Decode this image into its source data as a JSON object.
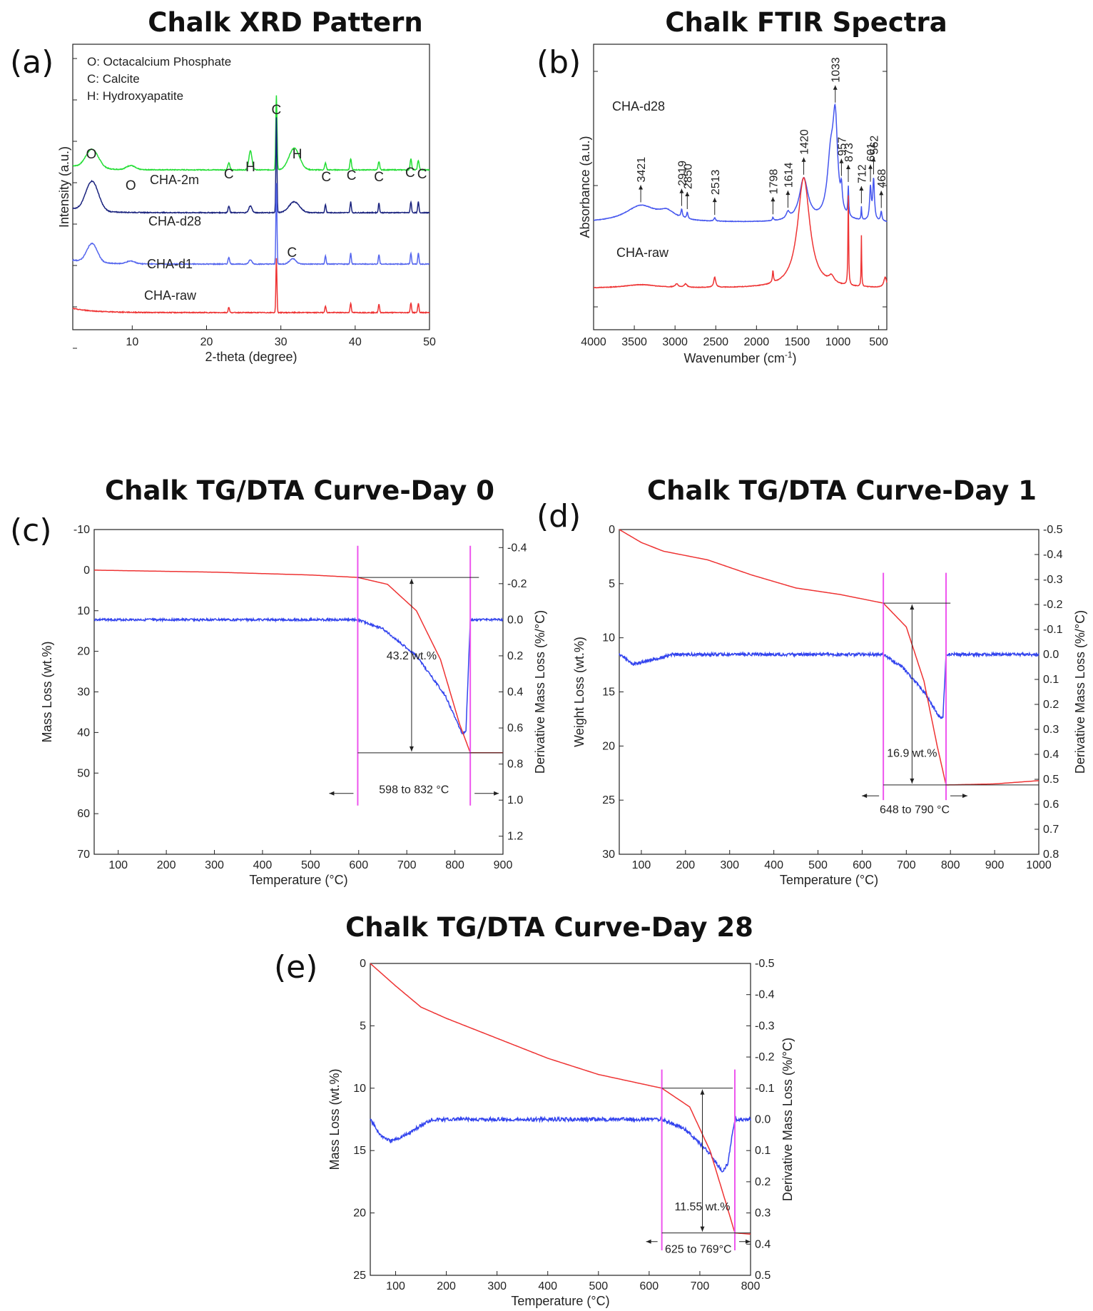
{
  "chart_data": [
    {
      "id": "a",
      "panel_label": "(a)",
      "type": "line",
      "title": "Chalk XRD Pattern",
      "xlabel": "2-theta (degree)",
      "ylabel": "Intensity (a.u.)",
      "xlim": [
        2,
        50
      ],
      "xticks": [
        10,
        20,
        30,
        40,
        50
      ],
      "legend": [
        "O: Octacalcium Phosphate",
        "C: Calcite",
        "H: Hydroxyapatite"
      ],
      "series": [
        {
          "name": "CHA-2m",
          "color": "#22dd33",
          "offset": 0.0,
          "peaks": [
            [
              4.6,
              0.14,
              1.2
            ],
            [
              9.8,
              0.03,
              0.8
            ],
            [
              23.0,
              0.05,
              0.2
            ],
            [
              25.9,
              0.14,
              0.3
            ],
            [
              29.4,
              0.55,
              0.12
            ],
            [
              31.8,
              0.16,
              1.0
            ],
            [
              36.0,
              0.05,
              0.15
            ],
            [
              39.4,
              0.08,
              0.15
            ],
            [
              43.2,
              0.06,
              0.15
            ],
            [
              47.5,
              0.08,
              0.15
            ],
            [
              48.5,
              0.07,
              0.15
            ]
          ]
        },
        {
          "name": "CHA-d28",
          "color": "#1a237e",
          "offset": 1.0,
          "peaks": [
            [
              4.6,
              0.22,
              1.2
            ],
            [
              23.0,
              0.05,
              0.15
            ],
            [
              25.9,
              0.05,
              0.3
            ],
            [
              29.4,
              0.7,
              0.1
            ],
            [
              31.8,
              0.08,
              1.0
            ],
            [
              36.0,
              0.06,
              0.12
            ],
            [
              39.4,
              0.08,
              0.12
            ],
            [
              43.2,
              0.07,
              0.12
            ],
            [
              47.5,
              0.08,
              0.12
            ],
            [
              48.5,
              0.08,
              0.12
            ]
          ]
        },
        {
          "name": "CHA-d1",
          "color": "#5566ee",
          "offset": 2.0,
          "peaks": [
            [
              4.6,
              0.14,
              1.0
            ],
            [
              9.8,
              0.02,
              0.8
            ],
            [
              23.0,
              0.05,
              0.15
            ],
            [
              25.9,
              0.03,
              0.3
            ],
            [
              29.4,
              0.6,
              0.1
            ],
            [
              31.6,
              0.04,
              0.6
            ],
            [
              36.0,
              0.06,
              0.12
            ],
            [
              39.4,
              0.08,
              0.12
            ],
            [
              43.2,
              0.07,
              0.12
            ],
            [
              47.5,
              0.08,
              0.12
            ],
            [
              48.5,
              0.08,
              0.12
            ]
          ]
        },
        {
          "name": "CHA-raw",
          "color": "#ee3333",
          "offset": 3.0,
          "peaks": [
            [
              23.0,
              0.04,
              0.12
            ],
            [
              29.4,
              0.4,
              0.1
            ],
            [
              36.0,
              0.05,
              0.12
            ],
            [
              39.4,
              0.07,
              0.12
            ],
            [
              43.2,
              0.06,
              0.12
            ],
            [
              47.5,
              0.07,
              0.12
            ],
            [
              48.5,
              0.07,
              0.12
            ]
          ]
        }
      ],
      "annotations": [
        {
          "text": "O",
          "x": 4.5,
          "row": 0
        },
        {
          "text": "O",
          "x": 9.8,
          "row": 0
        },
        {
          "text": "C",
          "x": 23.0,
          "row": 0
        },
        {
          "text": "H",
          "x": 25.9,
          "row": 0
        },
        {
          "text": "C",
          "x": 29.4,
          "row": 0
        },
        {
          "text": "H",
          "x": 32.2,
          "row": 0
        },
        {
          "text": "C",
          "x": 36.1,
          "row": 0
        },
        {
          "text": "C",
          "x": 39.5,
          "row": 0
        },
        {
          "text": "C",
          "x": 43.2,
          "row": 0
        },
        {
          "text": "C",
          "x": 47.4,
          "row": 0
        },
        {
          "text": "C",
          "x": 49.0,
          "row": 0
        },
        {
          "text": "C",
          "x": 31.5,
          "row": 2
        }
      ]
    },
    {
      "id": "b",
      "panel_label": "(b)",
      "type": "line",
      "title": "Chalk FTIR Spectra",
      "xlabel": "Wavenumber (cm-1)",
      "ylabel": "Absorbance (a.u.)",
      "xlim": [
        4000,
        400
      ],
      "xticks": [
        4000,
        3500,
        3000,
        2500,
        2000,
        1500,
        1000,
        500
      ],
      "series": [
        {
          "name": "CHA-d28",
          "color": "#4455ee",
          "offset": 0.0,
          "bands": [
            [
              3421,
              0.1,
              230
            ],
            [
              3100,
              0.05,
              120
            ],
            [
              2919,
              0.05,
              10
            ],
            [
              2850,
              0.04,
              10
            ],
            [
              2513,
              0.02,
              12
            ],
            [
              1798,
              0.02,
              8
            ],
            [
              1614,
              0.04,
              25
            ],
            [
              1420,
              0.26,
              65
            ],
            [
              1090,
              0.35,
              50
            ],
            [
              1033,
              0.55,
              35
            ],
            [
              957,
              0.12,
              12
            ],
            [
              873,
              0.18,
              6
            ],
            [
              712,
              0.08,
              5
            ],
            [
              601,
              0.2,
              12
            ],
            [
              562,
              0.25,
              12
            ],
            [
              468,
              0.06,
              10
            ]
          ]
        },
        {
          "name": "CHA-raw",
          "color": "#ee3333",
          "offset": 1.0,
          "bands": [
            [
              3421,
              0.02,
              250
            ],
            [
              2980,
              0.02,
              20
            ],
            [
              2870,
              0.02,
              20
            ],
            [
              2513,
              0.06,
              15
            ],
            [
              1798,
              0.07,
              8
            ],
            [
              1420,
              0.65,
              90
            ],
            [
              1080,
              0.04,
              40
            ],
            [
              873,
              0.55,
              5
            ],
            [
              712,
              0.3,
              4
            ],
            [
              420,
              0.06,
              20
            ]
          ]
        }
      ],
      "peak_labels": [
        "3421",
        "2919",
        "2850",
        "2513",
        "1798",
        "1614",
        "1420",
        "1033",
        "957",
        "873",
        "712",
        "601",
        "562",
        "468"
      ]
    },
    {
      "id": "c",
      "panel_label": "(c)",
      "type": "line",
      "title": "Chalk TG/DTA Curve-Day 0",
      "xlabel": "Temperature (°C)",
      "ylabel": "Mass Loss (wt.%)",
      "y2label": "Derivative Mass Loss (%/°C)",
      "xlim": [
        50,
        900
      ],
      "ylim": [
        -10,
        70
      ],
      "y2lim": [
        -0.5,
        1.3
      ],
      "xticks": [
        100,
        200,
        300,
        400,
        500,
        600,
        700,
        800,
        900
      ],
      "yticks": [
        -10,
        0,
        10,
        20,
        30,
        40,
        50,
        60,
        70
      ],
      "y2ticks": [
        -0.4,
        -0.2,
        0.0,
        0.2,
        0.4,
        0.6,
        0.8,
        1.0,
        1.2
      ],
      "tg": {
        "color": "#ee3333",
        "points": [
          [
            50,
            0
          ],
          [
            300,
            0.5
          ],
          [
            500,
            1.2
          ],
          [
            598,
            1.8
          ],
          [
            660,
            3.5
          ],
          [
            720,
            10
          ],
          [
            770,
            22
          ],
          [
            810,
            38
          ],
          [
            832,
            45
          ],
          [
            900,
            45
          ]
        ]
      },
      "dta": {
        "color": "#3344ee",
        "points": [
          [
            50,
            0.0
          ],
          [
            598,
            0.0
          ],
          [
            650,
            0.05
          ],
          [
            720,
            0.2
          ],
          [
            780,
            0.42
          ],
          [
            815,
            0.63
          ],
          [
            823,
            0.62
          ],
          [
            832,
            0.0
          ],
          [
            900,
            0.0
          ]
        ]
      },
      "range_lines": [
        598,
        832
      ],
      "onset_value": 1.8,
      "end_value": 45,
      "loss_label": "43.2 wt.%",
      "range_label": "598 to 832 °C"
    },
    {
      "id": "d",
      "panel_label": "(d)",
      "type": "line",
      "title": "Chalk TG/DTA Curve-Day 1",
      "xlabel": "Temperature (°C)",
      "ylabel": "Weight Loss (wt.%)",
      "y2label": "Derivative Mass Loss (%/°C)",
      "xlim": [
        50,
        1000
      ],
      "ylim": [
        0,
        30
      ],
      "y2lim": [
        -0.5,
        0.8
      ],
      "xticks": [
        100,
        200,
        300,
        400,
        500,
        600,
        700,
        800,
        900,
        1000
      ],
      "yticks": [
        0,
        5,
        10,
        15,
        20,
        25,
        30
      ],
      "y2ticks": [
        -0.5,
        -0.4,
        -0.3,
        -0.2,
        -0.1,
        0.0,
        0.1,
        0.2,
        0.3,
        0.4,
        0.5,
        0.6,
        0.7,
        0.8
      ],
      "tg": {
        "color": "#ee3333",
        "points": [
          [
            50,
            0
          ],
          [
            100,
            1.2
          ],
          [
            150,
            2.0
          ],
          [
            250,
            2.8
          ],
          [
            350,
            4.2
          ],
          [
            450,
            5.4
          ],
          [
            550,
            6.0
          ],
          [
            648,
            6.8
          ],
          [
            700,
            9
          ],
          [
            740,
            14
          ],
          [
            770,
            20
          ],
          [
            790,
            23.6
          ],
          [
            900,
            23.5
          ],
          [
            1000,
            23.2
          ]
        ]
      },
      "dta": {
        "color": "#3344ee",
        "points": [
          [
            50,
            0.0
          ],
          [
            60,
            0.01
          ],
          [
            80,
            0.04
          ],
          [
            130,
            0.02
          ],
          [
            170,
            0.0
          ],
          [
            648,
            0.0
          ],
          [
            690,
            0.05
          ],
          [
            740,
            0.15
          ],
          [
            775,
            0.25
          ],
          [
            783,
            0.25
          ],
          [
            790,
            0.0
          ],
          [
            1000,
            0.0
          ]
        ]
      },
      "range_lines": [
        648,
        790
      ],
      "onset_value": 6.8,
      "end_value": 23.6,
      "loss_label": "16.9 wt.%",
      "range_label": "648 to 790 °C"
    },
    {
      "id": "e",
      "panel_label": "(e)",
      "type": "line",
      "title": "Chalk TG/DTA Curve-Day 28",
      "xlabel": "Temperature (°C)",
      "ylabel": "Mass Loss (wt.%)",
      "y2label": "Derivative Mass Loss (%/°C)",
      "xlim": [
        50,
        800
      ],
      "ylim": [
        0,
        25
      ],
      "y2lim": [
        -0.5,
        0.5
      ],
      "xticks": [
        100,
        200,
        300,
        400,
        500,
        600,
        700,
        800
      ],
      "yticks": [
        0,
        5,
        10,
        15,
        20,
        25
      ],
      "y2ticks": [
        -0.5,
        -0.4,
        -0.3,
        -0.2,
        -0.1,
        0.0,
        0.1,
        0.2,
        0.3,
        0.4,
        0.5
      ],
      "tg": {
        "color": "#ee3333",
        "points": [
          [
            50,
            0
          ],
          [
            100,
            1.8
          ],
          [
            150,
            3.5
          ],
          [
            200,
            4.4
          ],
          [
            300,
            6.0
          ],
          [
            400,
            7.6
          ],
          [
            500,
            8.9
          ],
          [
            625,
            10.0
          ],
          [
            680,
            11.5
          ],
          [
            720,
            15
          ],
          [
            750,
            19
          ],
          [
            769,
            21.6
          ],
          [
            800,
            21.7
          ]
        ]
      },
      "dta": {
        "color": "#3344ee",
        "points": [
          [
            50,
            0.0
          ],
          [
            70,
            0.05
          ],
          [
            90,
            0.07
          ],
          [
            120,
            0.05
          ],
          [
            170,
            0.0
          ],
          [
            625,
            0.0
          ],
          [
            670,
            0.03
          ],
          [
            720,
            0.11
          ],
          [
            745,
            0.17
          ],
          [
            755,
            0.14
          ],
          [
            769,
            0.0
          ],
          [
            800,
            0.0
          ]
        ]
      },
      "range_lines": [
        625,
        769
      ],
      "onset_value": 10.0,
      "end_value": 21.6,
      "loss_label": "11.55 wt.%",
      "range_label": "625 to 769°C"
    }
  ]
}
